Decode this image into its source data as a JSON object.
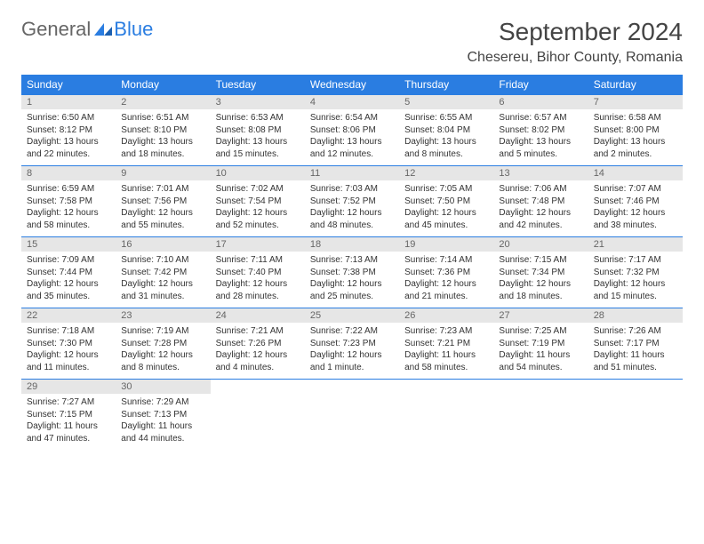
{
  "logo": {
    "general": "General",
    "blue": "Blue"
  },
  "title": "September 2024",
  "location": "Chesereu, Bihor County, Romania",
  "header_bg": "#2a7de1",
  "daynum_bg": "#e6e6e6",
  "weekdays": [
    "Sunday",
    "Monday",
    "Tuesday",
    "Wednesday",
    "Thursday",
    "Friday",
    "Saturday"
  ],
  "weeks": [
    [
      {
        "n": "1",
        "sr": "6:50 AM",
        "ss": "8:12 PM",
        "dl": "13 hours and 22 minutes."
      },
      {
        "n": "2",
        "sr": "6:51 AM",
        "ss": "8:10 PM",
        "dl": "13 hours and 18 minutes."
      },
      {
        "n": "3",
        "sr": "6:53 AM",
        "ss": "8:08 PM",
        "dl": "13 hours and 15 minutes."
      },
      {
        "n": "4",
        "sr": "6:54 AM",
        "ss": "8:06 PM",
        "dl": "13 hours and 12 minutes."
      },
      {
        "n": "5",
        "sr": "6:55 AM",
        "ss": "8:04 PM",
        "dl": "13 hours and 8 minutes."
      },
      {
        "n": "6",
        "sr": "6:57 AM",
        "ss": "8:02 PM",
        "dl": "13 hours and 5 minutes."
      },
      {
        "n": "7",
        "sr": "6:58 AM",
        "ss": "8:00 PM",
        "dl": "13 hours and 2 minutes."
      }
    ],
    [
      {
        "n": "8",
        "sr": "6:59 AM",
        "ss": "7:58 PM",
        "dl": "12 hours and 58 minutes."
      },
      {
        "n": "9",
        "sr": "7:01 AM",
        "ss": "7:56 PM",
        "dl": "12 hours and 55 minutes."
      },
      {
        "n": "10",
        "sr": "7:02 AM",
        "ss": "7:54 PM",
        "dl": "12 hours and 52 minutes."
      },
      {
        "n": "11",
        "sr": "7:03 AM",
        "ss": "7:52 PM",
        "dl": "12 hours and 48 minutes."
      },
      {
        "n": "12",
        "sr": "7:05 AM",
        "ss": "7:50 PM",
        "dl": "12 hours and 45 minutes."
      },
      {
        "n": "13",
        "sr": "7:06 AM",
        "ss": "7:48 PM",
        "dl": "12 hours and 42 minutes."
      },
      {
        "n": "14",
        "sr": "7:07 AM",
        "ss": "7:46 PM",
        "dl": "12 hours and 38 minutes."
      }
    ],
    [
      {
        "n": "15",
        "sr": "7:09 AM",
        "ss": "7:44 PM",
        "dl": "12 hours and 35 minutes."
      },
      {
        "n": "16",
        "sr": "7:10 AM",
        "ss": "7:42 PM",
        "dl": "12 hours and 31 minutes."
      },
      {
        "n": "17",
        "sr": "7:11 AM",
        "ss": "7:40 PM",
        "dl": "12 hours and 28 minutes."
      },
      {
        "n": "18",
        "sr": "7:13 AM",
        "ss": "7:38 PM",
        "dl": "12 hours and 25 minutes."
      },
      {
        "n": "19",
        "sr": "7:14 AM",
        "ss": "7:36 PM",
        "dl": "12 hours and 21 minutes."
      },
      {
        "n": "20",
        "sr": "7:15 AM",
        "ss": "7:34 PM",
        "dl": "12 hours and 18 minutes."
      },
      {
        "n": "21",
        "sr": "7:17 AM",
        "ss": "7:32 PM",
        "dl": "12 hours and 15 minutes."
      }
    ],
    [
      {
        "n": "22",
        "sr": "7:18 AM",
        "ss": "7:30 PM",
        "dl": "12 hours and 11 minutes."
      },
      {
        "n": "23",
        "sr": "7:19 AM",
        "ss": "7:28 PM",
        "dl": "12 hours and 8 minutes."
      },
      {
        "n": "24",
        "sr": "7:21 AM",
        "ss": "7:26 PM",
        "dl": "12 hours and 4 minutes."
      },
      {
        "n": "25",
        "sr": "7:22 AM",
        "ss": "7:23 PM",
        "dl": "12 hours and 1 minute."
      },
      {
        "n": "26",
        "sr": "7:23 AM",
        "ss": "7:21 PM",
        "dl": "11 hours and 58 minutes."
      },
      {
        "n": "27",
        "sr": "7:25 AM",
        "ss": "7:19 PM",
        "dl": "11 hours and 54 minutes."
      },
      {
        "n": "28",
        "sr": "7:26 AM",
        "ss": "7:17 PM",
        "dl": "11 hours and 51 minutes."
      }
    ],
    [
      {
        "n": "29",
        "sr": "7:27 AM",
        "ss": "7:15 PM",
        "dl": "11 hours and 47 minutes."
      },
      {
        "n": "30",
        "sr": "7:29 AM",
        "ss": "7:13 PM",
        "dl": "11 hours and 44 minutes."
      },
      null,
      null,
      null,
      null,
      null
    ]
  ],
  "labels": {
    "sunrise": "Sunrise:",
    "sunset": "Sunset:",
    "daylight": "Daylight:"
  }
}
